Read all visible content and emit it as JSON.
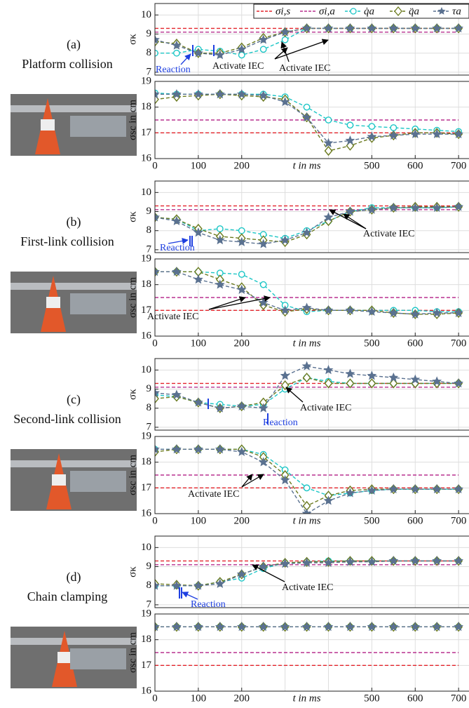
{
  "panels": [
    {
      "label": "(a)",
      "title": "Platform collision"
    },
    {
      "label": "(b)",
      "title": "First-link collision"
    },
    {
      "label": "(c)",
      "title": "Second-link collision"
    },
    {
      "label": "(d)",
      "title": "Chain clamping"
    }
  ],
  "chart_data": [
    {
      "type": "line",
      "ylabel": "σκ",
      "xlim": [
        0,
        724
      ],
      "ylim": [
        6.85,
        10.6
      ],
      "yticks": [
        7,
        8,
        9,
        10
      ],
      "xgrid": [
        0,
        100,
        200,
        300,
        400,
        500,
        600,
        700
      ],
      "grid": true,
      "x": [
        0,
        50,
        100,
        150,
        200,
        250,
        300,
        350,
        400,
        450,
        500,
        550,
        600,
        650,
        700
      ],
      "series": [
        {
          "name": "σi,s",
          "color": "#e3242b",
          "marker": "none",
          "values": [
            9.3,
            9.3,
            9.3,
            9.3,
            9.3,
            9.3,
            9.3,
            9.3,
            9.3,
            9.3,
            9.3,
            9.3,
            9.3,
            9.3,
            9.3
          ]
        },
        {
          "name": "σi,a",
          "color": "#b8318f",
          "marker": "none",
          "values": [
            9.1,
            9.1,
            9.1,
            9.1,
            9.1,
            9.1,
            9.1,
            9.1,
            9.1,
            9.1,
            9.1,
            9.1,
            9.1,
            9.1,
            9.1
          ]
        },
        {
          "name": "q̇a",
          "color": "#1cc6c6",
          "marker": "circle",
          "values": [
            8.0,
            8.0,
            8.2,
            8.1,
            7.9,
            8.2,
            8.7,
            9.3,
            9.3,
            9.3,
            9.3,
            9.3,
            9.3,
            9.3,
            9.3
          ]
        },
        {
          "name": "q̈a",
          "color": "#6b7a1f",
          "marker": "diamond",
          "values": [
            8.6,
            8.5,
            8.0,
            8.0,
            8.3,
            8.8,
            9.1,
            9.3,
            9.3,
            9.3,
            9.3,
            9.3,
            9.3,
            9.3,
            9.3
          ]
        },
        {
          "name": "τa",
          "color": "#5a7190",
          "marker": "star",
          "values": [
            8.7,
            8.4,
            8.0,
            7.9,
            8.2,
            8.7,
            9.1,
            9.3,
            9.3,
            9.3,
            9.3,
            9.3,
            9.3,
            9.3,
            9.3
          ]
        }
      ],
      "annotations": [
        "Reaction",
        "Activate IEC"
      ]
    },
    {
      "type": "line",
      "ylabel": "σsc in cm",
      "xlabel": "t in ms",
      "xlim": [
        0,
        724
      ],
      "ylim": [
        16,
        19
      ],
      "yticks": [
        16,
        17,
        18,
        19
      ],
      "xticks": [
        0,
        100,
        200,
        500,
        600,
        700
      ],
      "xgrid": [
        300,
        400
      ],
      "grid": true,
      "x": [
        0,
        50,
        100,
        150,
        200,
        250,
        300,
        350,
        400,
        450,
        500,
        550,
        600,
        650,
        700
      ],
      "series": [
        {
          "values": [
            17.0,
            17.0,
            17.0,
            17.0,
            17.0,
            17.0,
            17.0,
            17.0,
            17.0,
            17.0,
            17.0,
            17.0,
            17.0,
            17.0,
            17.0
          ]
        },
        {
          "values": [
            17.5,
            17.5,
            17.5,
            17.5,
            17.5,
            17.5,
            17.5,
            17.5,
            17.5,
            17.5,
            17.5,
            17.5,
            17.5,
            17.5,
            17.5
          ]
        },
        {
          "values": [
            18.55,
            18.5,
            18.5,
            18.5,
            18.5,
            18.5,
            18.4,
            18.0,
            17.5,
            17.3,
            17.25,
            17.2,
            17.15,
            17.1,
            17.05
          ]
        },
        {
          "values": [
            18.3,
            18.4,
            18.45,
            18.5,
            18.45,
            18.4,
            18.3,
            17.6,
            16.3,
            16.5,
            16.8,
            16.9,
            17.0,
            17.0,
            16.95
          ]
        },
        {
          "values": [
            18.5,
            18.5,
            18.5,
            18.5,
            18.5,
            18.45,
            18.2,
            17.6,
            16.6,
            16.7,
            16.85,
            16.9,
            16.95,
            16.95,
            16.95
          ]
        }
      ],
      "annotations": [
        "Activate IEC"
      ]
    },
    {
      "type": "line",
      "ylabel": "σκ",
      "xlim": [
        0,
        724
      ],
      "ylim": [
        6.85,
        10.6
      ],
      "yticks": [
        7,
        8,
        9,
        10
      ],
      "xgrid": [
        0,
        100,
        200,
        300,
        400,
        500,
        600,
        700
      ],
      "grid": true,
      "x": [
        0,
        50,
        100,
        150,
        200,
        250,
        300,
        350,
        400,
        450,
        500,
        550,
        600,
        650,
        700
      ],
      "series": [
        {
          "values": [
            9.3,
            9.3,
            9.3,
            9.3,
            9.3,
            9.3,
            9.3,
            9.3,
            9.3,
            9.3,
            9.3,
            9.3,
            9.3,
            9.3,
            9.3
          ]
        },
        {
          "values": [
            9.1,
            9.1,
            9.1,
            9.1,
            9.1,
            9.1,
            9.1,
            9.1,
            9.1,
            9.1,
            9.1,
            9.1,
            9.1,
            9.1,
            9.1
          ]
        },
        {
          "values": [
            8.7,
            8.6,
            8.0,
            8.1,
            8.0,
            7.8,
            7.6,
            8.0,
            8.5,
            9.0,
            9.2,
            9.2,
            9.2,
            9.2,
            9.25
          ]
        },
        {
          "values": [
            8.7,
            8.6,
            8.1,
            7.7,
            7.6,
            7.5,
            7.4,
            7.8,
            8.5,
            9.0,
            9.1,
            9.2,
            9.25,
            9.25,
            9.25
          ]
        },
        {
          "values": [
            8.7,
            8.5,
            7.9,
            7.5,
            7.4,
            7.3,
            7.5,
            7.9,
            8.7,
            9.0,
            9.1,
            9.2,
            9.2,
            9.2,
            9.25
          ]
        }
      ],
      "annotations": [
        "Reaction",
        "Activate IEC"
      ]
    },
    {
      "type": "line",
      "ylabel": "σsc in cm",
      "xlabel": "t in ms",
      "xlim": [
        0,
        724
      ],
      "ylim": [
        16,
        19
      ],
      "yticks": [
        16,
        17,
        18,
        19
      ],
      "xticks": [
        0,
        100,
        200,
        500,
        600,
        700
      ],
      "xgrid": [
        300,
        400
      ],
      "grid": true,
      "x": [
        0,
        50,
        100,
        150,
        200,
        250,
        300,
        350,
        400,
        450,
        500,
        550,
        600,
        650,
        700
      ],
      "series": [
        {
          "values": [
            17.0,
            17.0,
            17.0,
            17.0,
            17.0,
            17.0,
            17.0,
            17.0,
            17.0,
            17.0,
            17.0,
            17.0,
            17.0,
            17.0,
            17.0
          ]
        },
        {
          "values": [
            17.5,
            17.5,
            17.5,
            17.5,
            17.5,
            17.5,
            17.5,
            17.5,
            17.5,
            17.5,
            17.5,
            17.5,
            17.5,
            17.5,
            17.5
          ]
        },
        {
          "values": [
            18.5,
            18.5,
            18.5,
            18.45,
            18.4,
            18.0,
            17.2,
            16.95,
            17.0,
            17.0,
            17.0,
            17.0,
            17.0,
            16.95,
            16.95
          ]
        },
        {
          "values": [
            18.5,
            18.5,
            18.5,
            18.2,
            17.9,
            17.2,
            16.95,
            17.05,
            17.0,
            17.0,
            17.0,
            16.9,
            16.85,
            16.85,
            16.9
          ]
        },
        {
          "values": [
            18.5,
            18.5,
            18.2,
            18.0,
            17.8,
            17.3,
            17.0,
            17.1,
            17.0,
            17.0,
            16.95,
            16.9,
            16.85,
            16.9,
            16.9
          ]
        }
      ],
      "annotations": [
        "Activate IEC"
      ]
    },
    {
      "type": "line",
      "ylabel": "σκ",
      "xlim": [
        0,
        724
      ],
      "ylim": [
        6.85,
        10.6
      ],
      "yticks": [
        7,
        8,
        9,
        10
      ],
      "xgrid": [
        0,
        100,
        200,
        300,
        400,
        500,
        600,
        700
      ],
      "grid": true,
      "x": [
        0,
        50,
        100,
        150,
        200,
        250,
        300,
        350,
        400,
        450,
        500,
        550,
        600,
        650,
        700
      ],
      "series": [
        {
          "values": [
            9.3,
            9.3,
            9.3,
            9.3,
            9.3,
            9.3,
            9.3,
            9.3,
            9.3,
            9.3,
            9.3,
            9.3,
            9.3,
            9.3,
            9.3
          ]
        },
        {
          "values": [
            9.1,
            9.1,
            9.1,
            9.1,
            9.1,
            9.1,
            9.1,
            9.1,
            9.1,
            9.1,
            9.1,
            9.1,
            9.1,
            9.1,
            9.1
          ]
        },
        {
          "values": [
            8.7,
            8.6,
            8.3,
            8.2,
            8.1,
            8.2,
            9.0,
            9.6,
            9.4,
            9.3,
            9.3,
            9.3,
            9.3,
            9.3,
            9.3
          ]
        },
        {
          "values": [
            8.5,
            8.6,
            8.3,
            8.0,
            8.1,
            8.3,
            9.2,
            9.6,
            9.3,
            9.3,
            9.3,
            9.3,
            9.3,
            9.3,
            9.3
          ]
        },
        {
          "values": [
            8.8,
            8.7,
            8.3,
            8.0,
            8.1,
            8.0,
            9.7,
            10.2,
            10.0,
            9.8,
            9.7,
            9.6,
            9.5,
            9.4,
            9.3
          ]
        }
      ],
      "annotations": [
        "Activate IEC",
        "Reaction"
      ]
    },
    {
      "type": "line",
      "ylabel": "σsc in cm",
      "xlabel": "t in ms",
      "xlim": [
        0,
        724
      ],
      "ylim": [
        16,
        19
      ],
      "yticks": [
        16,
        17,
        18,
        19
      ],
      "xticks": [
        0,
        100,
        200,
        500,
        600,
        700
      ],
      "xgrid": [
        300,
        400
      ],
      "grid": true,
      "x": [
        0,
        50,
        100,
        150,
        200,
        250,
        300,
        350,
        400,
        450,
        500,
        550,
        600,
        650,
        700
      ],
      "series": [
        {
          "values": [
            17.0,
            17.0,
            17.0,
            17.0,
            17.0,
            17.0,
            17.0,
            17.0,
            17.0,
            17.0,
            17.0,
            17.0,
            17.0,
            17.0,
            17.0
          ]
        },
        {
          "values": [
            17.5,
            17.5,
            17.5,
            17.5,
            17.5,
            17.5,
            17.5,
            17.5,
            17.5,
            17.5,
            17.5,
            17.5,
            17.5,
            17.5,
            17.5
          ]
        },
        {
          "values": [
            18.5,
            18.5,
            18.5,
            18.5,
            18.5,
            18.3,
            17.7,
            17.0,
            16.7,
            16.8,
            16.9,
            16.95,
            16.95,
            16.95,
            16.95
          ]
        },
        {
          "values": [
            18.4,
            18.5,
            18.5,
            18.5,
            18.5,
            18.2,
            17.5,
            16.3,
            16.7,
            16.9,
            16.95,
            16.95,
            16.95,
            16.95,
            16.95
          ]
        },
        {
          "values": [
            18.5,
            18.5,
            18.5,
            18.5,
            18.4,
            18.0,
            17.3,
            16.0,
            16.5,
            16.8,
            16.9,
            16.95,
            16.95,
            16.95,
            16.95
          ]
        }
      ],
      "annotations": [
        "Activate IEC"
      ]
    },
    {
      "type": "line",
      "ylabel": "σκ",
      "xlim": [
        0,
        724
      ],
      "ylim": [
        6.85,
        10.6
      ],
      "yticks": [
        7,
        8,
        9,
        10
      ],
      "xgrid": [
        0,
        100,
        200,
        300,
        400,
        500,
        600,
        700
      ],
      "grid": true,
      "x": [
        0,
        50,
        100,
        150,
        200,
        250,
        300,
        350,
        400,
        450,
        500,
        550,
        600,
        650,
        700
      ],
      "series": [
        {
          "values": [
            9.3,
            9.3,
            9.3,
            9.3,
            9.3,
            9.3,
            9.3,
            9.3,
            9.3,
            9.3,
            9.3,
            9.3,
            9.3,
            9.3,
            9.3
          ]
        },
        {
          "values": [
            9.1,
            9.1,
            9.1,
            9.1,
            9.1,
            9.1,
            9.1,
            9.1,
            9.1,
            9.1,
            9.1,
            9.1,
            9.1,
            9.1,
            9.1
          ]
        },
        {
          "values": [
            8.0,
            8.0,
            8.0,
            8.2,
            8.4,
            8.9,
            9.2,
            9.25,
            9.3,
            9.3,
            9.3,
            9.3,
            9.3,
            9.3,
            9.3
          ]
        },
        {
          "values": [
            8.1,
            8.05,
            8.0,
            8.2,
            8.6,
            9.0,
            9.2,
            9.25,
            9.25,
            9.3,
            9.3,
            9.3,
            9.3,
            9.3,
            9.3
          ]
        },
        {
          "values": [
            8.0,
            8.0,
            8.0,
            8.1,
            8.6,
            9.0,
            9.15,
            9.2,
            9.2,
            9.25,
            9.25,
            9.3,
            9.3,
            9.3,
            9.3
          ]
        }
      ],
      "annotations": [
        "Activate IEC",
        "Reaction"
      ]
    },
    {
      "type": "line",
      "ylabel": "σsc in cm",
      "xlabel": "t in ms",
      "xlim": [
        0,
        724
      ],
      "ylim": [
        16,
        19
      ],
      "yticks": [
        16,
        17,
        18,
        19
      ],
      "xticks": [
        0,
        100,
        200,
        500,
        600,
        700
      ],
      "xgrid": [
        300,
        400
      ],
      "grid": true,
      "x": [
        0,
        50,
        100,
        150,
        200,
        250,
        300,
        350,
        400,
        450,
        500,
        550,
        600,
        650,
        700
      ],
      "series": [
        {
          "values": [
            17.0,
            17.0,
            17.0,
            17.0,
            17.0,
            17.0,
            17.0,
            17.0,
            17.0,
            17.0,
            17.0,
            17.0,
            17.0,
            17.0,
            17.0
          ]
        },
        {
          "values": [
            17.5,
            17.5,
            17.5,
            17.5,
            17.5,
            17.5,
            17.5,
            17.5,
            17.5,
            17.5,
            17.5,
            17.5,
            17.5,
            17.5,
            17.5
          ]
        },
        {
          "values": [
            18.5,
            18.5,
            18.5,
            18.5,
            18.5,
            18.5,
            18.5,
            18.5,
            18.5,
            18.5,
            18.5,
            18.5,
            18.5,
            18.5,
            18.5
          ]
        },
        {
          "values": [
            18.5,
            18.5,
            18.5,
            18.5,
            18.5,
            18.5,
            18.5,
            18.5,
            18.5,
            18.5,
            18.5,
            18.5,
            18.5,
            18.5,
            18.5
          ]
        },
        {
          "values": [
            18.5,
            18.5,
            18.5,
            18.5,
            18.5,
            18.5,
            18.5,
            18.5,
            18.5,
            18.5,
            18.5,
            18.5,
            18.5,
            18.5,
            18.5
          ]
        }
      ]
    }
  ]
}
